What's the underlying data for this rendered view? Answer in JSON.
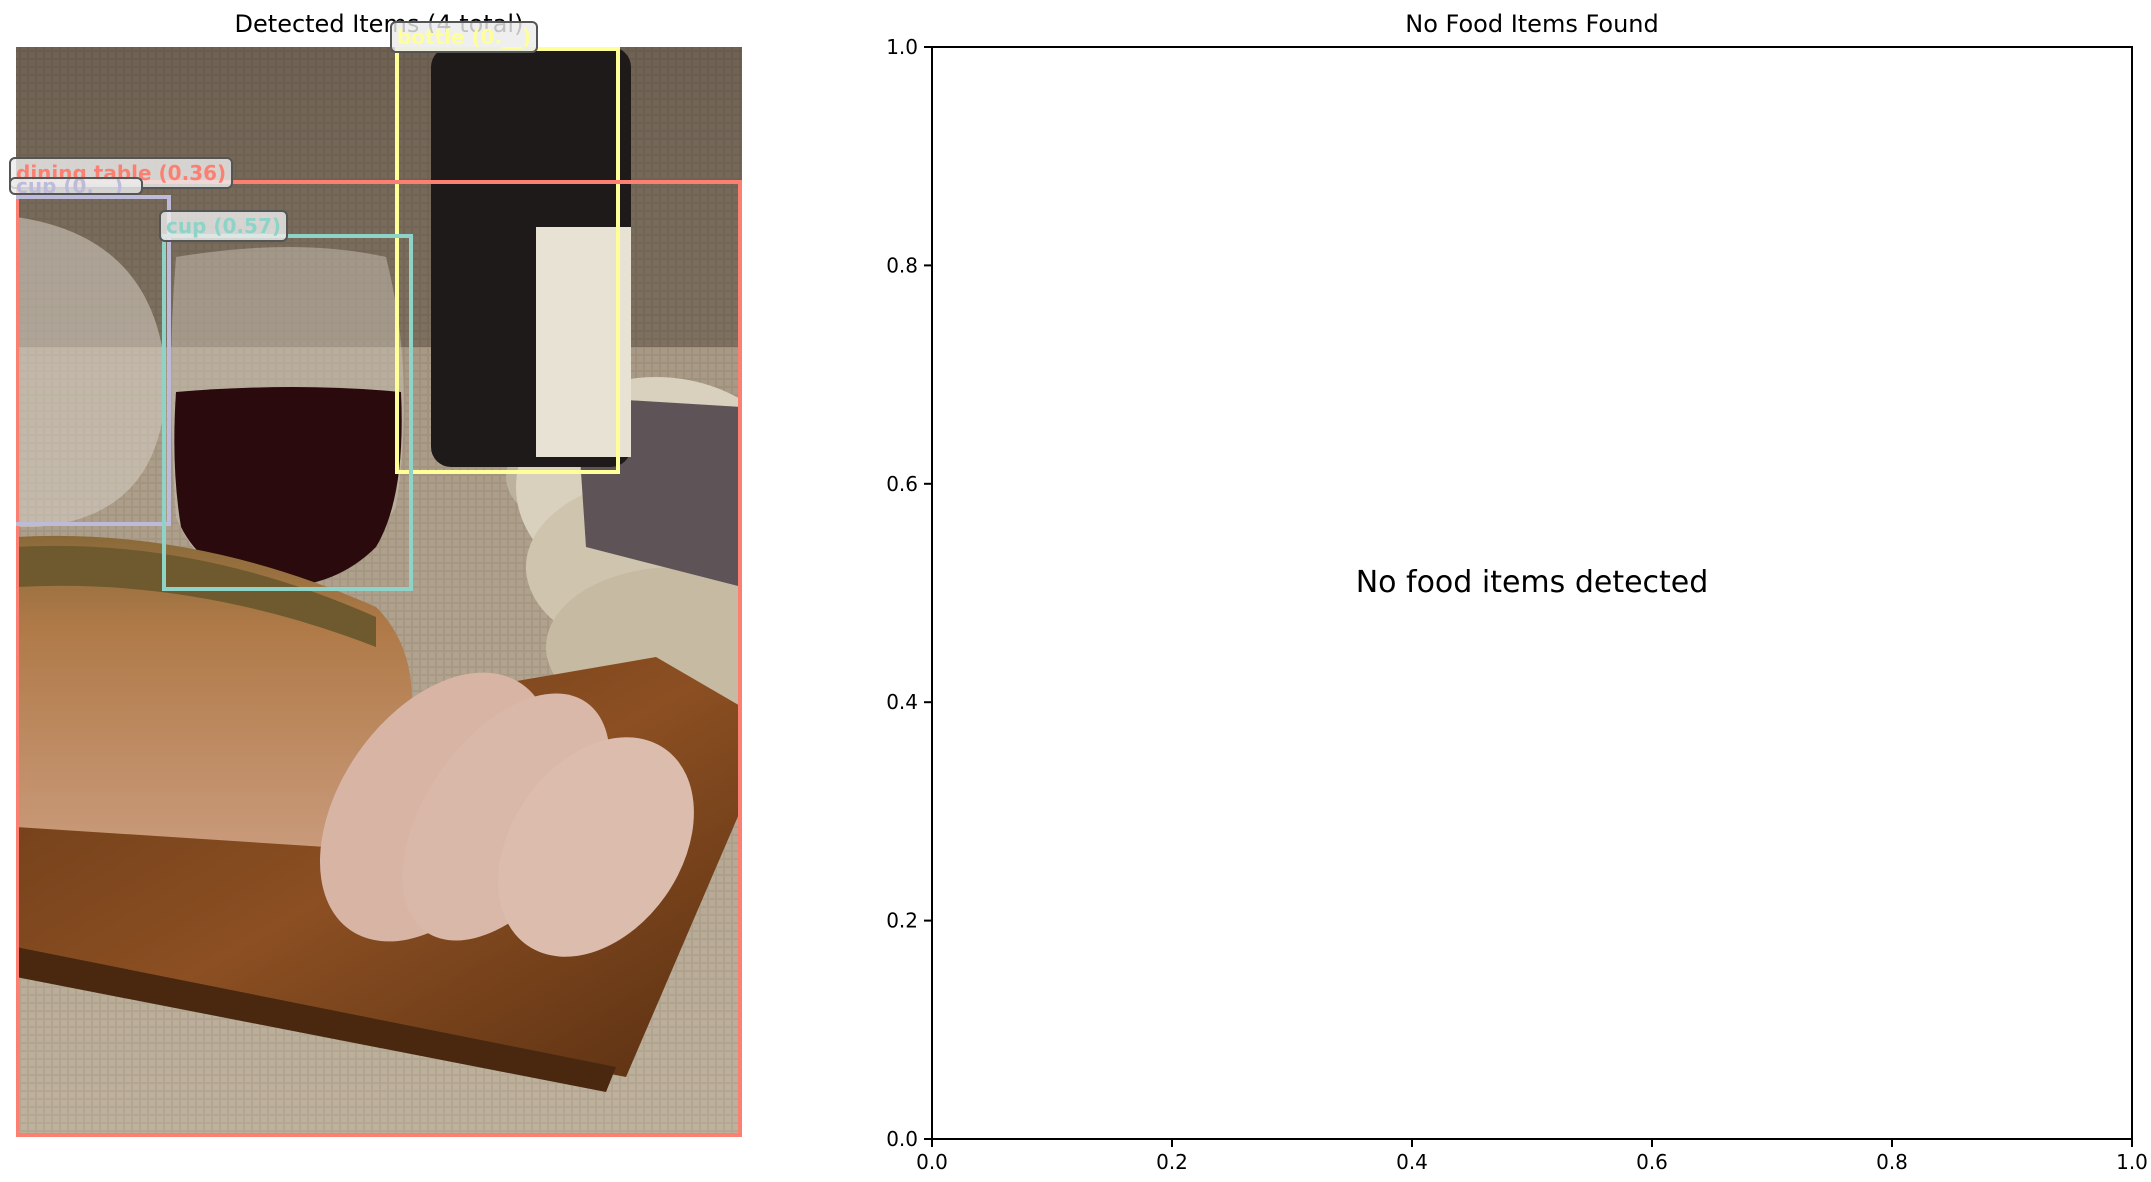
{
  "left_panel": {
    "title": "Detected Items (4 total)",
    "detections": [
      {
        "label": "bottle (0.__)",
        "color": "#ffff99"
      },
      {
        "label": "dining table (0.36)",
        "color": "#fb8072"
      },
      {
        "label": "cup (0.__)",
        "color": "#bebada"
      },
      {
        "label": "cup (0.57)",
        "color": "#8dd3c7"
      }
    ]
  },
  "right_panel": {
    "title": "No Food Items Found",
    "message": "No food items detected"
  },
  "chart_data": [
    {
      "type": "scatter",
      "title": "No Food Items Found",
      "xlim": [
        0.0,
        1.0
      ],
      "ylim": [
        0.0,
        1.0
      ],
      "xticks": [
        "0.0",
        "0.2",
        "0.4",
        "0.6",
        "0.8",
        "1.0"
      ],
      "yticks": [
        "0.0",
        "0.2",
        "0.4",
        "0.6",
        "0.8",
        "1.0"
      ],
      "series": [],
      "annotations": [
        "No food items detected"
      ],
      "grid": false
    }
  ]
}
